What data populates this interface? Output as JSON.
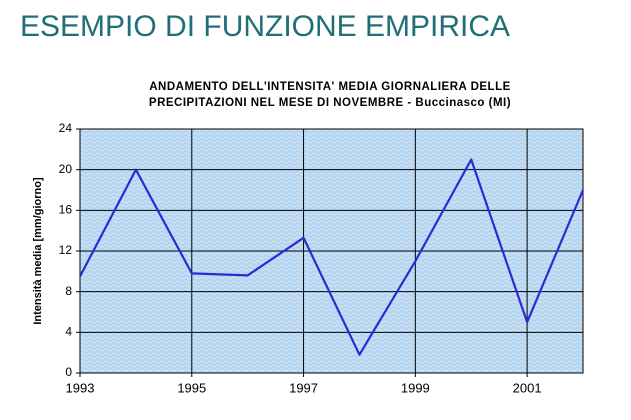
{
  "slide_title": "ESEMPIO DI FUNZIONE EMPIRICA",
  "chart_data": {
    "type": "line",
    "title": [
      "ANDAMENTO DELL'INTENSITA' MEDIA GIORNALIERA DELLE",
      "PRECIPITAZIONI NEL MESE DI NOVEMBRE - Buccinasco (MI)"
    ],
    "y_label": "Intensità media [mm/giorno]",
    "x": [
      1993,
      1994,
      1995,
      1996,
      1997,
      1998,
      1999,
      2000,
      2001,
      2002
    ],
    "series": [
      {
        "color": "#2b2bd6",
        "values": [
          9.5,
          20,
          9.8,
          9.6,
          13.3,
          1.8,
          11,
          21,
          5,
          18
        ]
      }
    ],
    "xlim": [
      1993,
      2002
    ],
    "xticks": [
      1993,
      1995,
      1997,
      1999,
      2001
    ],
    "ylim": [
      0,
      24
    ],
    "yticks": [
      0,
      4,
      8,
      12,
      16,
      20,
      24
    ],
    "grid": true
  }
}
